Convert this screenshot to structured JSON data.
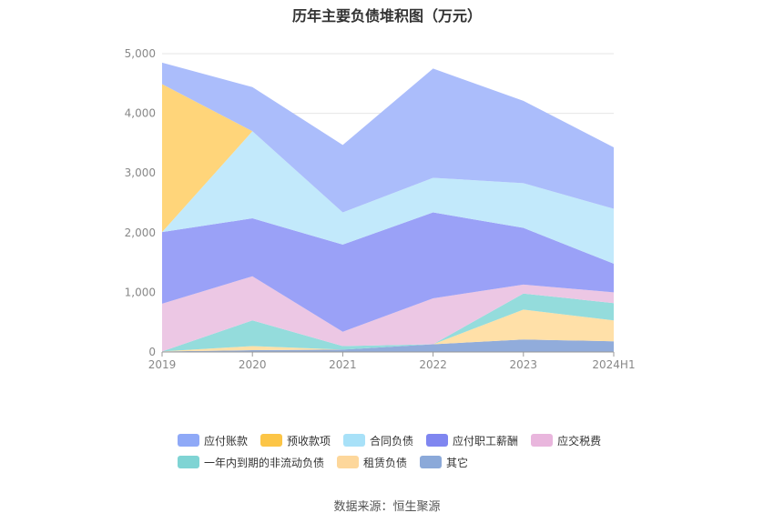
{
  "chart_data": {
    "type": "area",
    "stacked": true,
    "title": "历年主要负债堆积图（万元）",
    "categories": [
      "2019",
      "2020",
      "2021",
      "2022",
      "2023",
      "2024H1"
    ],
    "ylim": [
      0,
      5000
    ],
    "yticks": [
      "0",
      "1,000",
      "2,000",
      "3,000",
      "4,000",
      "5,000"
    ],
    "grid": true,
    "legend_position": "bottom",
    "series": [
      {
        "name": "其它",
        "color": "#91acdb",
        "values": [
          10,
          30,
          40,
          130,
          210,
          180
        ]
      },
      {
        "name": "租赁负债",
        "color": "#ffe0a8",
        "values": [
          0,
          70,
          0,
          0,
          500,
          350
        ]
      },
      {
        "name": "一年内到期的非流动负债",
        "color": "#94dcdc",
        "values": [
          0,
          430,
          60,
          0,
          270,
          290
        ]
      },
      {
        "name": "应交税费",
        "color": "#ecc7e4",
        "values": [
          800,
          740,
          240,
          770,
          150,
          180
        ]
      },
      {
        "name": "应付职工薪酬",
        "color": "#9aa1f7",
        "values": [
          1200,
          970,
          1460,
          1440,
          950,
          480
        ]
      },
      {
        "name": "合同负债",
        "color": "#c2e9fb",
        "values": [
          0,
          1460,
          540,
          580,
          750,
          920
        ]
      },
      {
        "name": "预收款项",
        "color": "#ffd57a",
        "values": [
          2480,
          0,
          0,
          0,
          0,
          0
        ]
      },
      {
        "name": "应付账款",
        "color": "#abbdfb",
        "values": [
          360,
          740,
          1130,
          1830,
          1380,
          1030
        ]
      }
    ],
    "legend": [
      {
        "name": "应付账款",
        "color": "#8fa9f7"
      },
      {
        "name": "预收款项",
        "color": "#fcc546"
      },
      {
        "name": "合同负债",
        "color": "#a8e1f8"
      },
      {
        "name": "应付职工薪酬",
        "color": "#7f86f0"
      },
      {
        "name": "应交税费",
        "color": "#e9b6dd"
      },
      {
        "name": "一年内到期的非流动负债",
        "color": "#7fd4d4"
      },
      {
        "name": "租赁负债",
        "color": "#fdd79b"
      },
      {
        "name": "其它",
        "color": "#8ba9d9"
      }
    ],
    "source": "数据来源：恒生聚源"
  }
}
